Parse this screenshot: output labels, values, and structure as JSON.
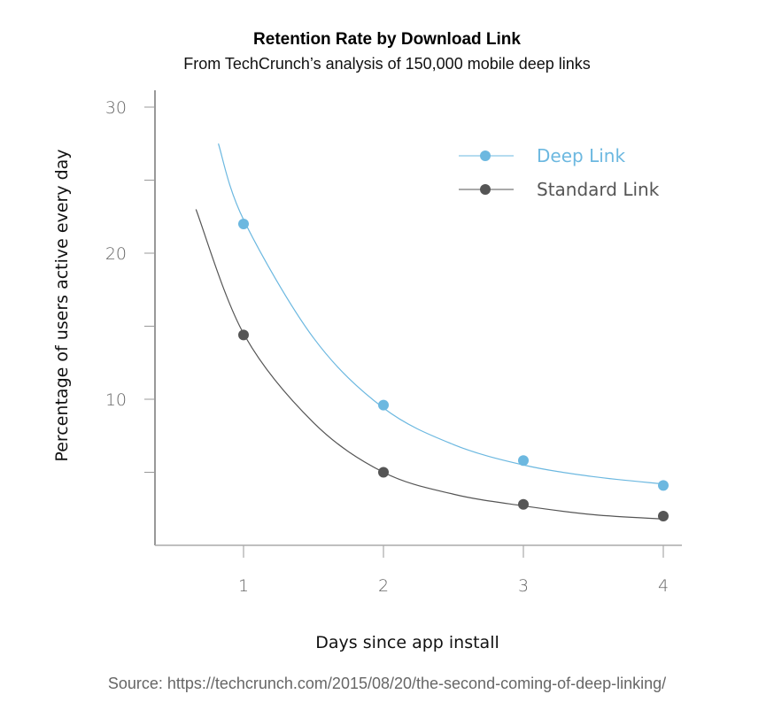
{
  "chart_data": {
    "type": "scatter",
    "title": "Retention Rate by Download Link",
    "subtitle": "From TechCrunch’s analysis of 150,000 mobile deep links",
    "xlabel": "Days since app install",
    "ylabel": "Percentage of users  active every day",
    "source": "Source: https://techcrunch.com/2015/08/20/the-second-coming-of-deep-linking/",
    "xlim": [
      0.35,
      4.15
    ],
    "ylim": [
      0,
      31.2
    ],
    "x_ticks": [
      1,
      2,
      3,
      4
    ],
    "y_ticks": [
      10,
      20,
      30
    ],
    "y_minor_ticks": [
      5,
      15,
      25
    ],
    "grid": false,
    "legend_position": "top-right",
    "series": [
      {
        "name": "Deep Link",
        "color": "#6cb8e0",
        "x": [
          1,
          2,
          3,
          4
        ],
        "y": [
          22.0,
          9.6,
          5.8,
          4.1
        ],
        "trend": [
          [
            0.82,
            27.5
          ],
          [
            1,
            22.3
          ],
          [
            1.5,
            14.2
          ],
          [
            2,
            9.4
          ],
          [
            2.5,
            6.9
          ],
          [
            3,
            5.5
          ],
          [
            3.5,
            4.7
          ],
          [
            4,
            4.2
          ]
        ]
      },
      {
        "name": "Standard Link",
        "color": "#555555",
        "x": [
          1,
          2,
          3,
          4
        ],
        "y": [
          14.4,
          5.0,
          2.8,
          2.0
        ],
        "trend": [
          [
            0.66,
            23.0
          ],
          [
            1,
            14.5
          ],
          [
            1.5,
            8.4
          ],
          [
            2,
            5.0
          ],
          [
            2.5,
            3.5
          ],
          [
            3,
            2.7
          ],
          [
            3.5,
            2.1
          ],
          [
            4,
            1.8
          ]
        ]
      }
    ]
  }
}
